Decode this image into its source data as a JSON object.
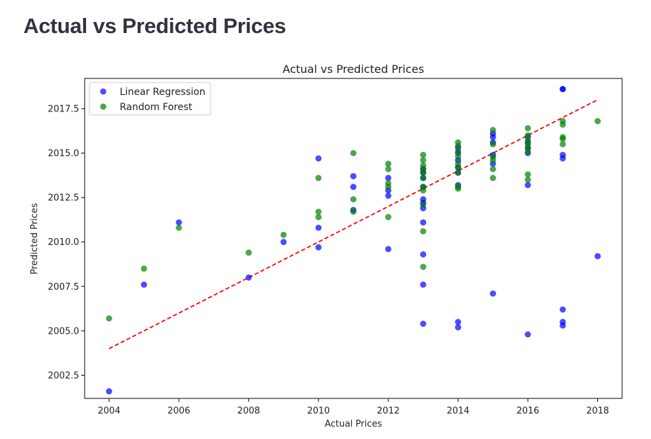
{
  "page": {
    "heading": "Actual vs Predicted Prices"
  },
  "chart_data": {
    "type": "scatter",
    "title": "Actual vs Predicted Prices",
    "xlabel": "Actual Prices",
    "ylabel": "Predicted Prices",
    "xlim": [
      2003.3,
      2018.7
    ],
    "ylim": [
      2001.2,
      2019.2
    ],
    "xticks": [
      2004,
      2006,
      2008,
      2010,
      2012,
      2014,
      2016,
      2018
    ],
    "xtick_labels": [
      "2004",
      "2006",
      "2008",
      "2010",
      "2012",
      "2014",
      "2016",
      "2018"
    ],
    "yticks": [
      2002.5,
      2005.0,
      2007.5,
      2010.0,
      2012.5,
      2015.0,
      2017.5
    ],
    "ytick_labels": [
      "2002.5",
      "2005.0",
      "2007.5",
      "2010.0",
      "2012.5",
      "2015.0",
      "2017.5"
    ],
    "grid": false,
    "legend_position": "top-left",
    "series": [
      {
        "name": "Linear Regression",
        "color": "#0000ff",
        "points": [
          [
            2004,
            2001.6
          ],
          [
            2005,
            2007.6
          ],
          [
            2006,
            2011.1
          ],
          [
            2008,
            2008.0
          ],
          [
            2009,
            2010.0
          ],
          [
            2010,
            2014.7
          ],
          [
            2010,
            2010.8
          ],
          [
            2010,
            2009.7
          ],
          [
            2011,
            2013.7
          ],
          [
            2011,
            2013.1
          ],
          [
            2011,
            2011.8
          ],
          [
            2012,
            2013.6
          ],
          [
            2012,
            2012.9
          ],
          [
            2012,
            2012.6
          ],
          [
            2012,
            2009.6
          ],
          [
            2013,
            2014.1
          ],
          [
            2013,
            2013.9
          ],
          [
            2013,
            2013.6
          ],
          [
            2013,
            2013.1
          ],
          [
            2013,
            2012.4
          ],
          [
            2013,
            2012.2
          ],
          [
            2013,
            2011.9
          ],
          [
            2013,
            2011.1
          ],
          [
            2013,
            2009.3
          ],
          [
            2013,
            2007.6
          ],
          [
            2013,
            2005.4
          ],
          [
            2014,
            2015.3
          ],
          [
            2014,
            2015.0
          ],
          [
            2014,
            2014.6
          ],
          [
            2014,
            2014.2
          ],
          [
            2014,
            2013.9
          ],
          [
            2014,
            2013.2
          ],
          [
            2014,
            2005.5
          ],
          [
            2014,
            2005.2
          ],
          [
            2015,
            2016.1
          ],
          [
            2015,
            2015.9
          ],
          [
            2015,
            2015.6
          ],
          [
            2015,
            2014.9
          ],
          [
            2015,
            2014.4
          ],
          [
            2015,
            2007.1
          ],
          [
            2016,
            2015.9
          ],
          [
            2016,
            2015.6
          ],
          [
            2016,
            2015.3
          ],
          [
            2016,
            2015.0
          ],
          [
            2016,
            2013.2
          ],
          [
            2016,
            2004.8
          ],
          [
            2017,
            2018.6
          ],
          [
            2017,
            2018.6
          ],
          [
            2017,
            2014.9
          ],
          [
            2017,
            2014.7
          ],
          [
            2017,
            2006.2
          ],
          [
            2017,
            2005.5
          ],
          [
            2017,
            2005.3
          ],
          [
            2018,
            2009.2
          ]
        ]
      },
      {
        "name": "Random Forest",
        "color": "#008000",
        "points": [
          [
            2004,
            2005.7
          ],
          [
            2005,
            2008.5
          ],
          [
            2006,
            2010.8
          ],
          [
            2008,
            2009.4
          ],
          [
            2009,
            2010.4
          ],
          [
            2010,
            2013.6
          ],
          [
            2010,
            2011.7
          ],
          [
            2010,
            2011.4
          ],
          [
            2011,
            2015.0
          ],
          [
            2011,
            2012.4
          ],
          [
            2011,
            2011.7
          ],
          [
            2012,
            2014.4
          ],
          [
            2012,
            2014.1
          ],
          [
            2012,
            2013.3
          ],
          [
            2012,
            2013.1
          ],
          [
            2012,
            2011.4
          ],
          [
            2013,
            2014.9
          ],
          [
            2013,
            2014.6
          ],
          [
            2013,
            2014.3
          ],
          [
            2013,
            2014.1
          ],
          [
            2013,
            2013.9
          ],
          [
            2013,
            2013.6
          ],
          [
            2013,
            2013.1
          ],
          [
            2013,
            2012.9
          ],
          [
            2013,
            2012.1
          ],
          [
            2013,
            2010.6
          ],
          [
            2013,
            2008.6
          ],
          [
            2014,
            2015.6
          ],
          [
            2014,
            2015.4
          ],
          [
            2014,
            2015.1
          ],
          [
            2014,
            2014.8
          ],
          [
            2014,
            2014.4
          ],
          [
            2014,
            2014.2
          ],
          [
            2014,
            2013.9
          ],
          [
            2014,
            2013.1
          ],
          [
            2014,
            2013.0
          ],
          [
            2015,
            2016.3
          ],
          [
            2015,
            2015.5
          ],
          [
            2015,
            2014.8
          ],
          [
            2015,
            2014.6
          ],
          [
            2015,
            2014.1
          ],
          [
            2015,
            2013.6
          ],
          [
            2016,
            2016.4
          ],
          [
            2016,
            2016.0
          ],
          [
            2016,
            2015.7
          ],
          [
            2016,
            2015.5
          ],
          [
            2016,
            2015.3
          ],
          [
            2016,
            2015.1
          ],
          [
            2016,
            2013.8
          ],
          [
            2016,
            2013.5
          ],
          [
            2017,
            2016.8
          ],
          [
            2017,
            2016.6
          ],
          [
            2017,
            2015.9
          ],
          [
            2017,
            2015.8
          ],
          [
            2017,
            2015.5
          ],
          [
            2018,
            2016.8
          ]
        ]
      }
    ],
    "reference_line": {
      "style": "dashed",
      "color": "#ff0000",
      "from": [
        2004,
        2004
      ],
      "to": [
        2018,
        2018
      ]
    }
  }
}
